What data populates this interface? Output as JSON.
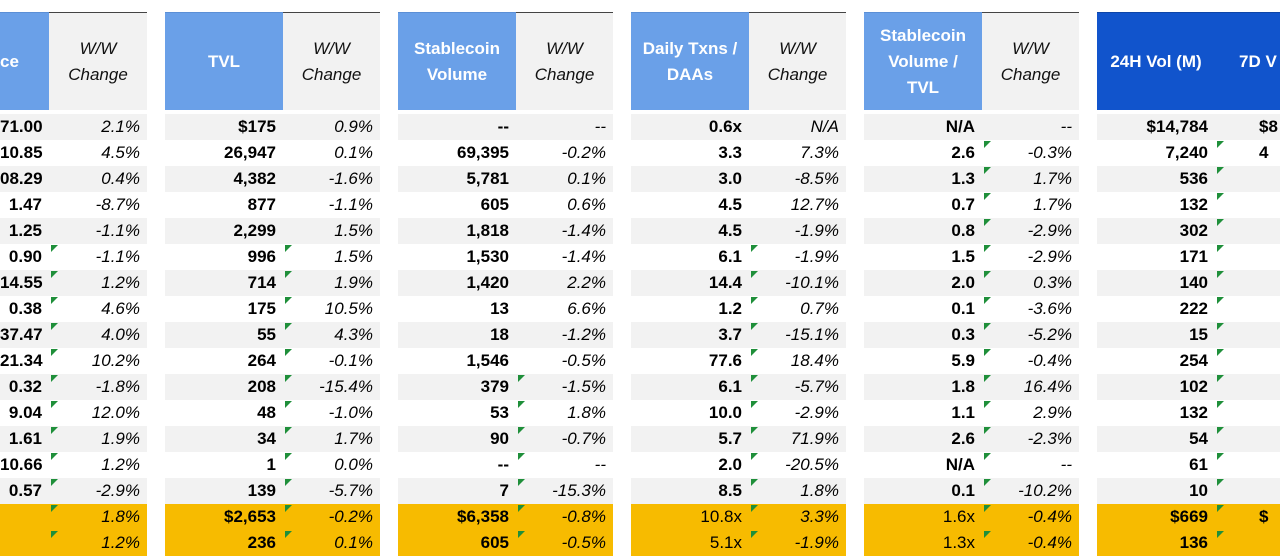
{
  "headers": [
    {
      "key": "price",
      "label": "ce",
      "type": "main"
    },
    {
      "key": "price_ww",
      "label": "W/W\nChange",
      "type": "sub"
    },
    {
      "key": "tvl",
      "label": "TVL",
      "type": "main"
    },
    {
      "key": "tvl_ww",
      "label": "W/W\nChange",
      "type": "sub"
    },
    {
      "key": "stable",
      "label": "Stablecoin\nVolume",
      "type": "main"
    },
    {
      "key": "stable_ww",
      "label": "W/W\nChange",
      "type": "sub"
    },
    {
      "key": "txn",
      "label": "Daily Txns /\nDAAs",
      "type": "main"
    },
    {
      "key": "txn_ww",
      "label": "W/W\nChange",
      "type": "sub"
    },
    {
      "key": "svtvl",
      "label": "Stablecoin\nVolume /\nTVL",
      "type": "main"
    },
    {
      "key": "svtvl_ww",
      "label": "W/W\nChange",
      "type": "sub"
    },
    {
      "key": "vol24",
      "label": "24H Vol (M)",
      "type": "main-dark"
    },
    {
      "key": "vol7",
      "label": "7D V",
      "type": "main-dark"
    }
  ],
  "rows": [
    [
      "71.00",
      "2.1%",
      "$175",
      "0.9%",
      "--",
      "--",
      "0.6x",
      "N/A",
      "N/A",
      "--",
      "$14,784",
      "$8"
    ],
    [
      "10.85",
      "4.5%",
      "26,947",
      "0.1%",
      "69,395",
      "-0.2%",
      "3.3",
      "7.3%",
      "2.6",
      "-0.3%",
      "7,240",
      "4"
    ],
    [
      "08.29",
      "0.4%",
      "4,382",
      "-1.6%",
      "5,781",
      "0.1%",
      "3.0",
      "-8.5%",
      "1.3",
      "1.7%",
      "536",
      ""
    ],
    [
      "1.47",
      "-8.7%",
      "877",
      "-1.1%",
      "605",
      "0.6%",
      "4.5",
      "12.7%",
      "0.7",
      "1.7%",
      "132",
      ""
    ],
    [
      "1.25",
      "-1.1%",
      "2,299",
      "1.5%",
      "1,818",
      "-1.4%",
      "4.5",
      "-1.9%",
      "0.8",
      "-2.9%",
      "302",
      ""
    ],
    [
      "0.90",
      "-1.1%",
      "996",
      "1.5%",
      "1,530",
      "-1.4%",
      "6.1",
      "-1.9%",
      "1.5",
      "-2.9%",
      "171",
      ""
    ],
    [
      "14.55",
      "1.2%",
      "714",
      "1.9%",
      "1,420",
      "2.2%",
      "14.4",
      "-10.1%",
      "2.0",
      "0.3%",
      "140",
      ""
    ],
    [
      "0.38",
      "4.6%",
      "175",
      "10.5%",
      "13",
      "6.6%",
      "1.2",
      "0.7%",
      "0.1",
      "-3.6%",
      "222",
      ""
    ],
    [
      "37.47",
      "4.0%",
      "55",
      "4.3%",
      "18",
      "-1.2%",
      "3.7",
      "-15.1%",
      "0.3",
      "-5.2%",
      "15",
      ""
    ],
    [
      "21.34",
      "10.2%",
      "264",
      "-0.1%",
      "1,546",
      "-0.5%",
      "77.6",
      "18.4%",
      "5.9",
      "-0.4%",
      "254",
      ""
    ],
    [
      "0.32",
      "-1.8%",
      "208",
      "-15.4%",
      "379",
      "-1.5%",
      "6.1",
      "-5.7%",
      "1.8",
      "16.4%",
      "102",
      ""
    ],
    [
      "9.04",
      "12.0%",
      "48",
      "-1.0%",
      "53",
      "1.8%",
      "10.0",
      "-2.9%",
      "1.1",
      "2.9%",
      "132",
      ""
    ],
    [
      "1.61",
      "1.9%",
      "34",
      "1.7%",
      "90",
      "-0.7%",
      "5.7",
      "71.9%",
      "2.6",
      "-2.3%",
      "54",
      ""
    ],
    [
      "10.66",
      "1.2%",
      "1",
      "0.0%",
      "--",
      "--",
      "2.0",
      "-20.5%",
      "N/A",
      "--",
      "61",
      ""
    ],
    [
      "0.57",
      "-2.9%",
      "139",
      "-5.7%",
      "7",
      "-15.3%",
      "8.5",
      "1.8%",
      "0.1",
      "-10.2%",
      "10",
      ""
    ],
    [
      "",
      "1.8%",
      "$2,653",
      "-0.2%",
      "$6,358",
      "-0.8%",
      "10.8x",
      "3.3%",
      "1.6x",
      "-0.4%",
      "$669",
      "$"
    ],
    [
      "",
      "1.2%",
      "236",
      "0.1%",
      "605",
      "-0.5%",
      "5.1x",
      "-1.9%",
      "1.3x",
      "-0.4%",
      "136",
      ""
    ]
  ],
  "colors": {
    "header_main": "#6aa0e8",
    "header_dark": "#1154cc",
    "header_sub": "#f2f2f2",
    "band_light": "#f2f2f2",
    "summary": "#f7bb00",
    "flag": "#1f8f3a"
  }
}
